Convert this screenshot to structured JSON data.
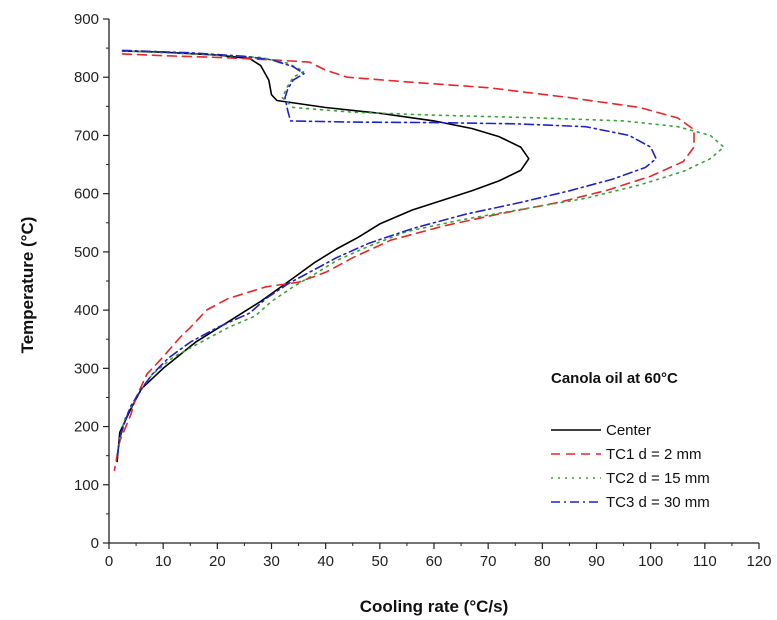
{
  "chart_data": {
    "type": "line",
    "title": "",
    "xlabel": "Cooling rate (°C/s)",
    "ylabel": "Temperature (°C)",
    "xlim": [
      0,
      120
    ],
    "ylim": [
      0,
      900
    ],
    "x_ticks": [
      "0",
      "10",
      "20",
      "30",
      "40",
      "50",
      "60",
      "70",
      "80",
      "90",
      "100",
      "110",
      "120"
    ],
    "y_ticks": [
      "0",
      "100",
      "200",
      "300",
      "400",
      "500",
      "600",
      "700",
      "800",
      "900"
    ],
    "grid": false,
    "annotation": "Canola oil at 60°C",
    "legend_position": "bottom-right",
    "series": [
      {
        "name": "Center",
        "color": "#000000",
        "dash": "solid",
        "points": [
          [
            2.5,
            845
          ],
          [
            10,
            843
          ],
          [
            20,
            838
          ],
          [
            26,
            832
          ],
          [
            28,
            820
          ],
          [
            29.5,
            795
          ],
          [
            30,
            770
          ],
          [
            31,
            760
          ],
          [
            40,
            748
          ],
          [
            50,
            738
          ],
          [
            60,
            725
          ],
          [
            67,
            712
          ],
          [
            72,
            698
          ],
          [
            76,
            680
          ],
          [
            77.5,
            660
          ],
          [
            76,
            640
          ],
          [
            72,
            622
          ],
          [
            67,
            605
          ],
          [
            62,
            590
          ],
          [
            56,
            572
          ],
          [
            50,
            548
          ],
          [
            46,
            525
          ],
          [
            42,
            505
          ],
          [
            38,
            482
          ],
          [
            34,
            455
          ],
          [
            28,
            415
          ],
          [
            22,
            380
          ],
          [
            16,
            345
          ],
          [
            10,
            300
          ],
          [
            6,
            265
          ],
          [
            4,
            230
          ],
          [
            2,
            190
          ],
          [
            1.5,
            140
          ]
        ]
      },
      {
        "name": "TC1 d = 2 mm",
        "color": "#e8262a",
        "dash": "dashed",
        "points": [
          [
            2.5,
            840
          ],
          [
            10,
            837
          ],
          [
            20,
            834
          ],
          [
            30,
            830
          ],
          [
            37,
            826
          ],
          [
            40,
            812
          ],
          [
            44,
            800
          ],
          [
            55,
            792
          ],
          [
            70,
            782
          ],
          [
            85,
            765
          ],
          [
            98,
            748
          ],
          [
            105,
            730
          ],
          [
            108,
            710
          ],
          [
            108,
            680
          ],
          [
            106,
            655
          ],
          [
            100,
            630
          ],
          [
            92,
            606
          ],
          [
            83,
            585
          ],
          [
            72,
            565
          ],
          [
            62,
            545
          ],
          [
            52,
            520
          ],
          [
            45,
            490
          ],
          [
            40,
            465
          ],
          [
            35,
            448
          ],
          [
            29,
            440
          ],
          [
            22,
            420
          ],
          [
            18,
            400
          ],
          [
            15,
            370
          ],
          [
            13,
            352
          ],
          [
            10,
            320
          ],
          [
            7,
            290
          ],
          [
            5,
            250
          ],
          [
            4,
            220
          ],
          [
            2,
            175
          ],
          [
            1,
            125
          ]
        ]
      },
      {
        "name": "TC2 d = 15 mm",
        "color": "#3aa33a",
        "dash": "dotted",
        "points": [
          [
            3,
            845
          ],
          [
            15,
            840
          ],
          [
            28,
            834
          ],
          [
            33,
            824
          ],
          [
            36,
            810
          ],
          [
            34,
            800
          ],
          [
            33,
            785
          ],
          [
            32,
            765
          ],
          [
            34,
            748
          ],
          [
            45,
            740
          ],
          [
            60,
            735
          ],
          [
            80,
            730
          ],
          [
            95,
            725
          ],
          [
            105,
            715
          ],
          [
            111,
            700
          ],
          [
            113.5,
            680
          ],
          [
            111,
            660
          ],
          [
            106,
            638
          ],
          [
            98,
            615
          ],
          [
            88,
            592
          ],
          [
            76,
            573
          ],
          [
            65,
            555
          ],
          [
            55,
            535
          ],
          [
            48,
            510
          ],
          [
            42,
            485
          ],
          [
            38,
            462
          ],
          [
            34,
            440
          ],
          [
            30,
            415
          ],
          [
            27,
            390
          ],
          [
            22,
            370
          ],
          [
            17,
            345
          ],
          [
            12,
            320
          ],
          [
            8,
            290
          ],
          [
            5,
            250
          ],
          [
            3,
            215
          ],
          [
            2,
            180
          ],
          [
            1.5,
            145
          ]
        ]
      },
      {
        "name": "TC3 d = 30 mm",
        "color": "#2222cc",
        "dash": "dashdot",
        "points": [
          [
            2.5,
            846
          ],
          [
            15,
            842
          ],
          [
            25,
            836
          ],
          [
            30,
            830
          ],
          [
            34,
            818
          ],
          [
            36,
            806
          ],
          [
            34,
            795
          ],
          [
            33,
            780
          ],
          [
            32.5,
            765
          ],
          [
            33,
            742
          ],
          [
            33.5,
            725
          ],
          [
            45,
            723
          ],
          [
            60,
            722
          ],
          [
            75,
            720
          ],
          [
            88,
            715
          ],
          [
            96,
            700
          ],
          [
            100,
            680
          ],
          [
            101,
            660
          ],
          [
            99,
            645
          ],
          [
            93,
            625
          ],
          [
            85,
            605
          ],
          [
            76,
            585
          ],
          [
            66,
            565
          ],
          [
            56,
            540
          ],
          [
            48,
            515
          ],
          [
            42,
            490
          ],
          [
            38,
            470
          ],
          [
            33,
            445
          ],
          [
            29,
            420
          ],
          [
            26,
            395
          ],
          [
            20,
            370
          ],
          [
            15,
            345
          ],
          [
            11,
            318
          ],
          [
            8,
            290
          ],
          [
            6,
            265
          ],
          [
            4,
            235
          ],
          [
            3,
            210
          ],
          [
            2,
            180
          ],
          [
            1.5,
            148
          ]
        ]
      }
    ]
  }
}
